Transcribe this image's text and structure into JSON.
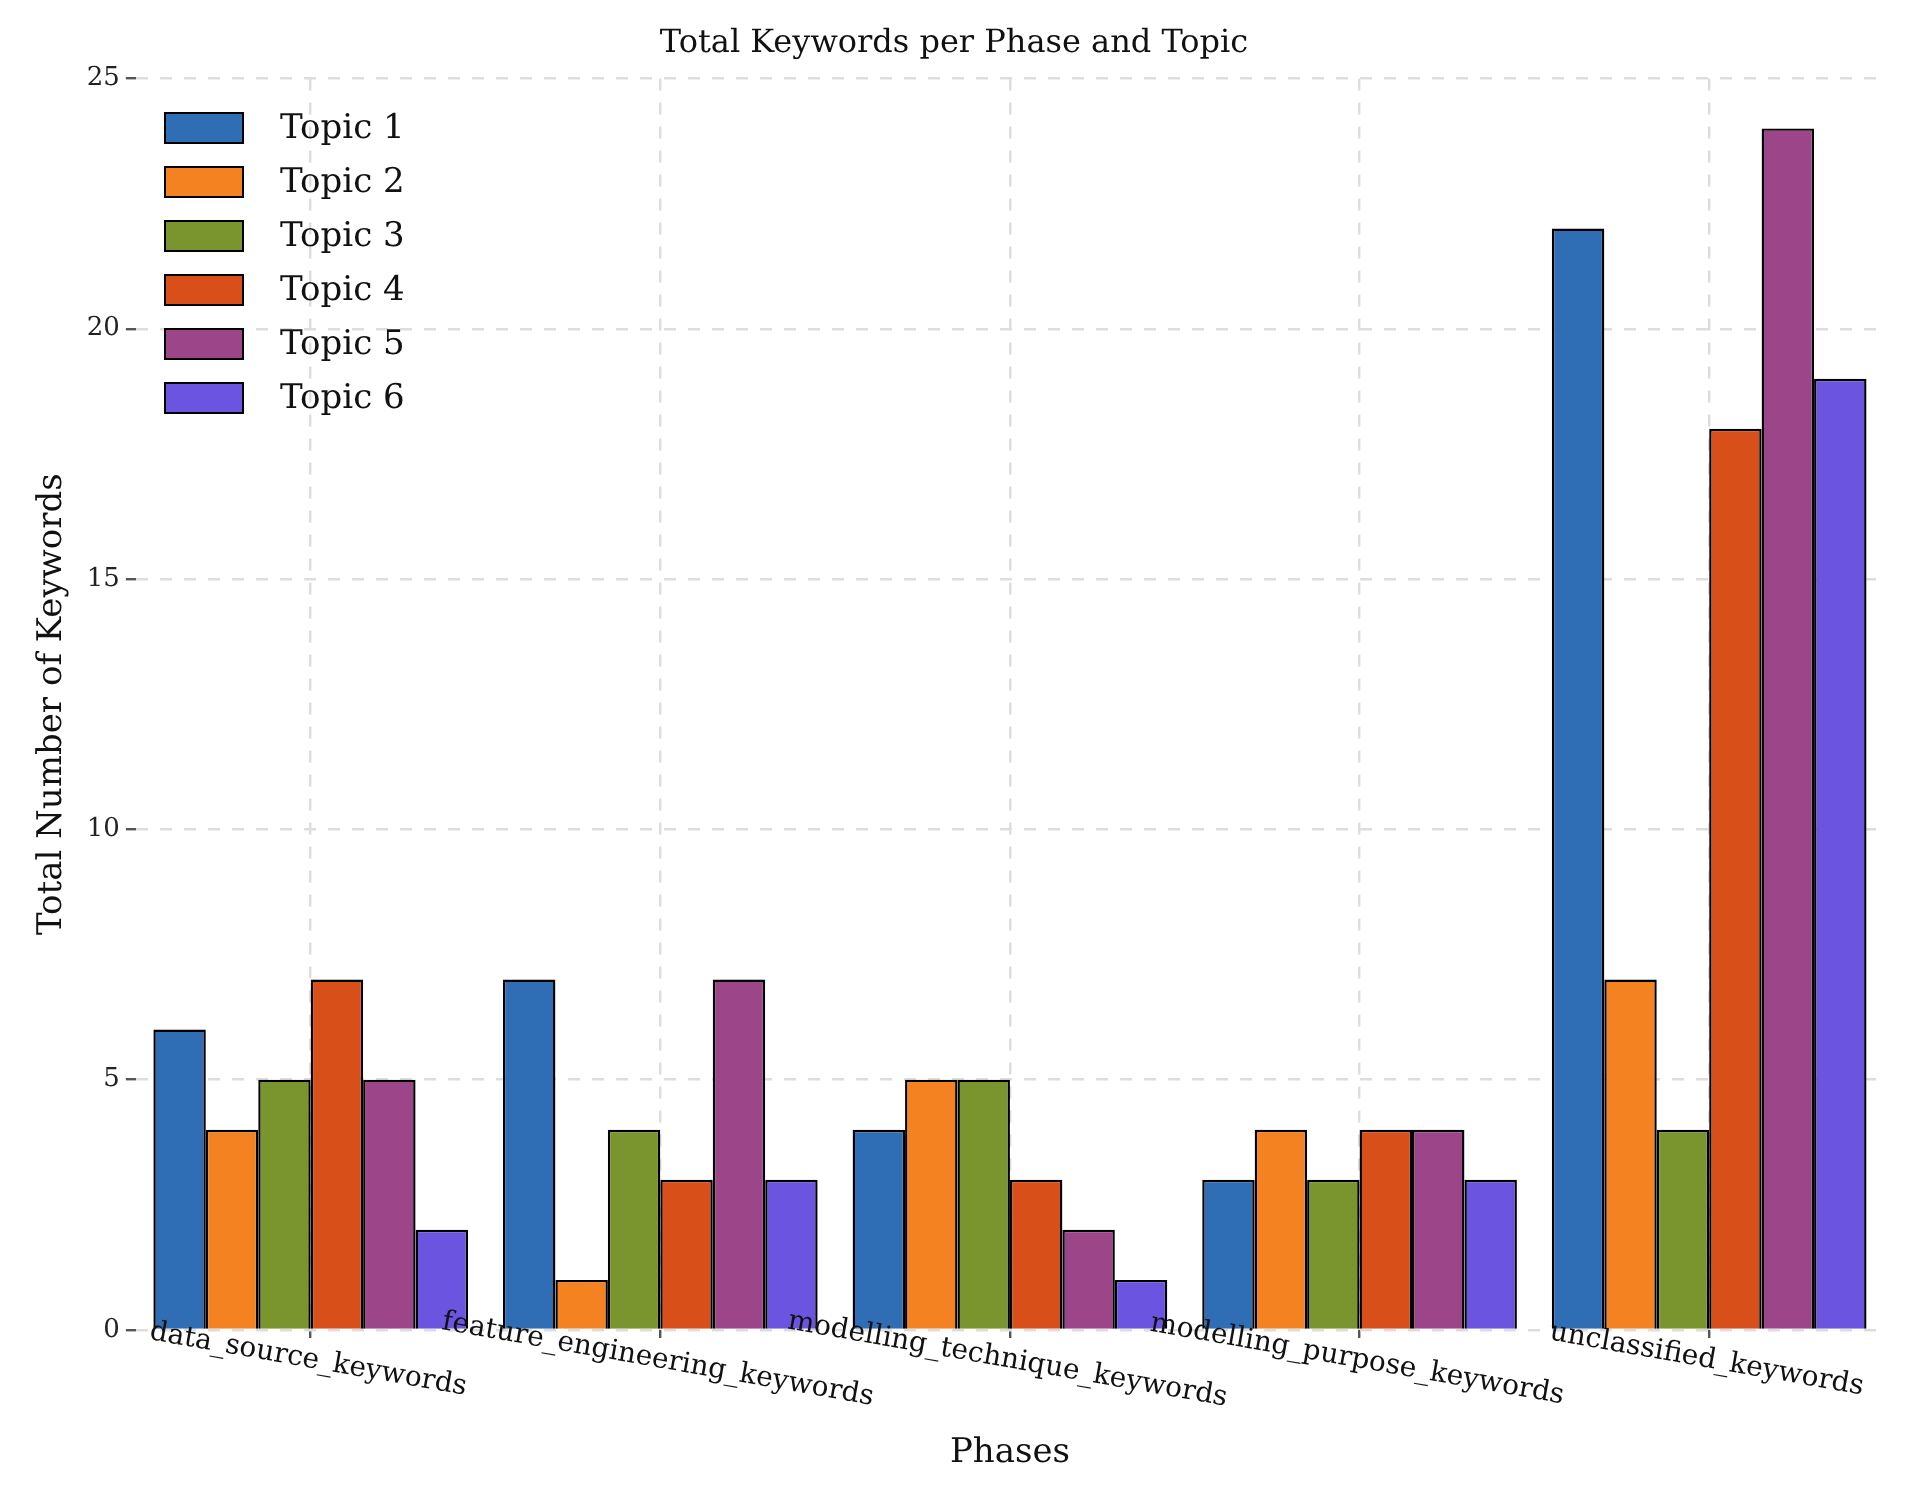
{
  "chart_data": {
    "type": "bar",
    "title": "Total Keywords per Phase and Topic",
    "xlabel": "Phases",
    "ylabel": "Total Number of Keywords",
    "categories": [
      "data_source_keywords",
      "feature_engineering_keywords",
      "modelling_technique_keywords",
      "modelling_purpose_keywords",
      "unclassified_keywords"
    ],
    "series": [
      {
        "name": "Topic 1",
        "color": "#2f6eb5",
        "values": [
          6,
          7,
          4,
          3,
          22
        ]
      },
      {
        "name": "Topic 2",
        "color": "#f58220",
        "values": [
          4,
          1,
          5,
          4,
          7
        ]
      },
      {
        "name": "Topic 3",
        "color": "#7a942e",
        "values": [
          5,
          4,
          5,
          3,
          4
        ]
      },
      {
        "name": "Topic 4",
        "color": "#d94f1a",
        "values": [
          7,
          3,
          3,
          4,
          18
        ]
      },
      {
        "name": "Topic 5",
        "color": "#9c4589",
        "values": [
          5,
          7,
          2,
          4,
          24
        ]
      },
      {
        "name": "Topic 6",
        "color": "#6b55e0",
        "values": [
          2,
          3,
          1,
          3,
          19
        ]
      }
    ],
    "ylim": [
      0,
      25
    ],
    "yticks": [
      0,
      5,
      10,
      15,
      20,
      25
    ],
    "grid": true,
    "legend": "top left"
  }
}
